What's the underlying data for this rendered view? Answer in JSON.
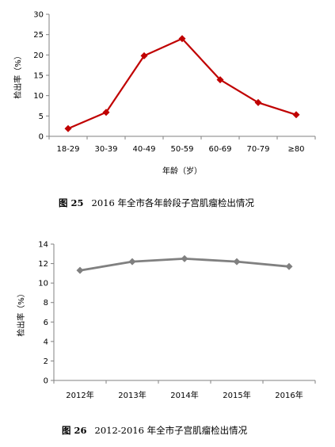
{
  "figures": [
    {
      "caption_label": "图 25",
      "caption_text": "2016 年全市各年龄段子宫肌瘤检出情况"
    },
    {
      "caption_label": "图 26",
      "caption_text": "2012-2016 年全市子宫肌瘤检出情况"
    }
  ],
  "chart_data": [
    {
      "type": "line",
      "categories": [
        "18-29",
        "30-39",
        "40-49",
        "50-59",
        "60-69",
        "70-79",
        "≥80"
      ],
      "series": [
        {
          "values": [
            1.9,
            5.9,
            19.8,
            24.0,
            13.9,
            8.3,
            5.3
          ]
        }
      ],
      "xlabel": "年龄（岁）",
      "ylabel": "检出率（%）",
      "ylim": [
        0,
        30
      ],
      "yticks": [
        0,
        5,
        10,
        15,
        20,
        25,
        30
      ],
      "line_color": "#c00000",
      "marker": "diamond",
      "grid": false
    },
    {
      "type": "line",
      "categories": [
        "2012年",
        "2013年",
        "2014年",
        "2015年",
        "2016年"
      ],
      "series": [
        {
          "values": [
            11.3,
            12.2,
            12.5,
            12.2,
            11.7
          ]
        }
      ],
      "xlabel": "",
      "ylabel": "检出率（%）",
      "ylim": [
        0,
        14
      ],
      "yticks": [
        0,
        2,
        4,
        6,
        8,
        10,
        12,
        14
      ],
      "line_color": "#808080",
      "marker": "diamond",
      "grid": false
    }
  ]
}
